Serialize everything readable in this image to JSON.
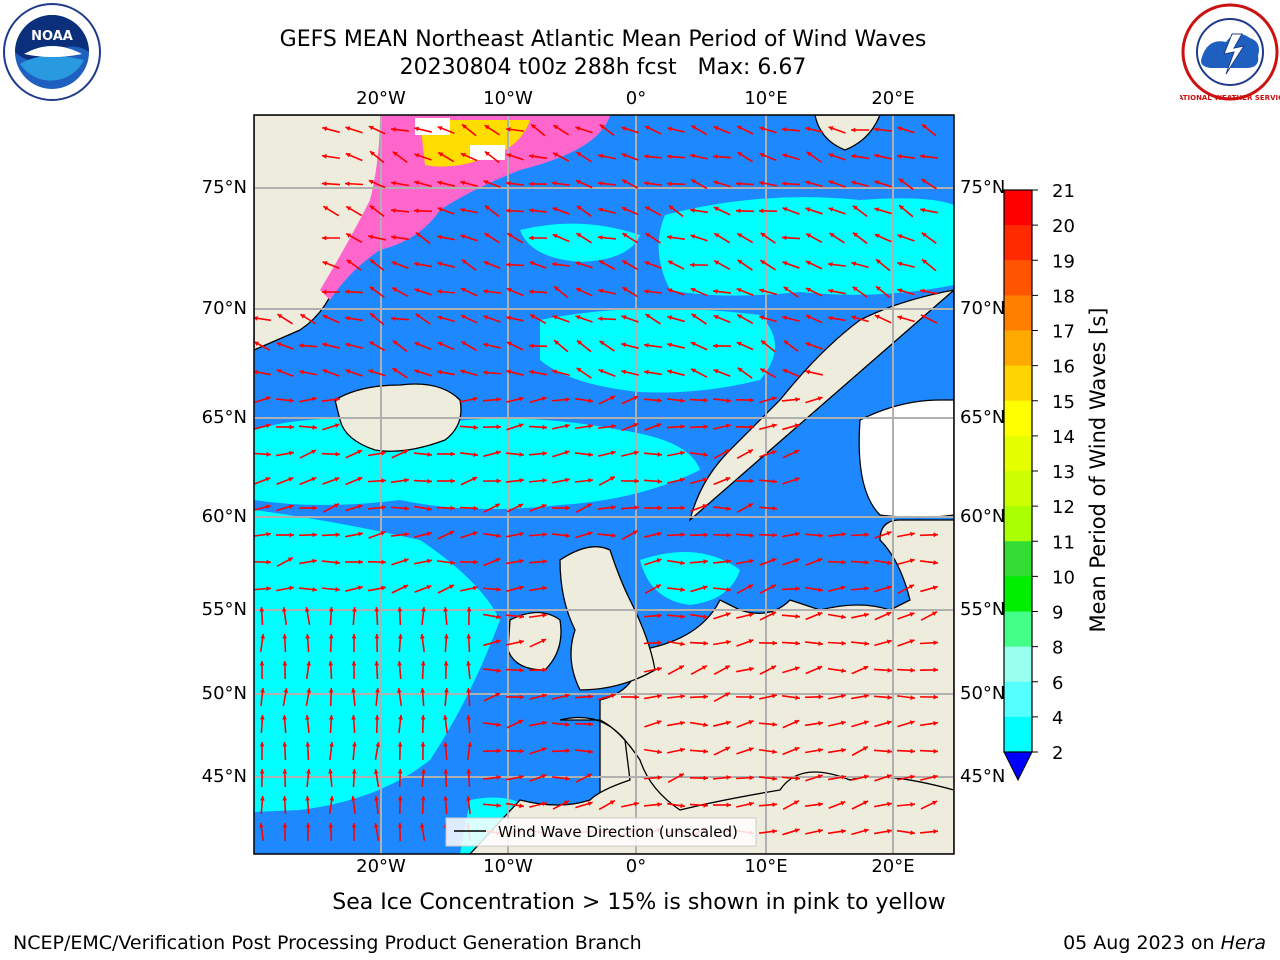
{
  "header": {
    "title_line1": "GEFS MEAN Northeast Atlantic Mean Period of Wind Waves",
    "title_line2": "20230804 t00z 288h fcst   Max: 6.67"
  },
  "map": {
    "lon_ticks_top": [
      "20°W",
      "10°W",
      "0°",
      "10°E",
      "20°E"
    ],
    "lon_ticks_bottom": [
      "20°W",
      "10°W",
      "0°",
      "10°E",
      "20°E"
    ],
    "lat_ticks_left": [
      "75°N",
      "70°N",
      "65°N",
      "60°N",
      "55°N",
      "50°N",
      "45°N"
    ],
    "lat_ticks_right": [
      "75°N",
      "70°N",
      "65°N",
      "60°N",
      "55°N",
      "50°N",
      "45°N"
    ],
    "legend_label": "Wind Wave Direction (unscaled)",
    "colors": {
      "land": "#eeecdc",
      "ice": "#ffffff",
      "ocean_2_4": "#1e88ff",
      "ocean_4_6": "#00ffff",
      "ocean_low": "#0011ee",
      "arrow": "#ff0000",
      "grid": "#b0b0b0"
    }
  },
  "colorbar": {
    "title": "Mean Period of Wind Waves [s]",
    "tick_labels": [
      "21",
      "20",
      "19",
      "18",
      "17",
      "16",
      "15",
      "14",
      "13",
      "12",
      "11",
      "10",
      "9",
      "8",
      "6",
      "4",
      "2"
    ],
    "colors": [
      "#ff0000",
      "#ff2a00",
      "#ff5500",
      "#ff8000",
      "#ffaa00",
      "#ffd400",
      "#ffff00",
      "#e6ff00",
      "#ccff00",
      "#aaff00",
      "#33dd33",
      "#00ee00",
      "#44ff88",
      "#99ffee",
      "#55ffff",
      "#00ffff",
      "#1e88ff"
    ],
    "under_color": "#0000ff"
  },
  "notes": {
    "sea_ice": "Sea Ice Concentration > 15% is shown in pink to yellow"
  },
  "footer": {
    "left": "NCEP/EMC/Verification Post Processing Product Generation Branch",
    "right_date": "05 Aug 2023 on ",
    "right_machine": "Hera"
  },
  "logos": {
    "left_text": "NOAA",
    "right_text": "NATIONAL WEATHER SERVICE"
  }
}
